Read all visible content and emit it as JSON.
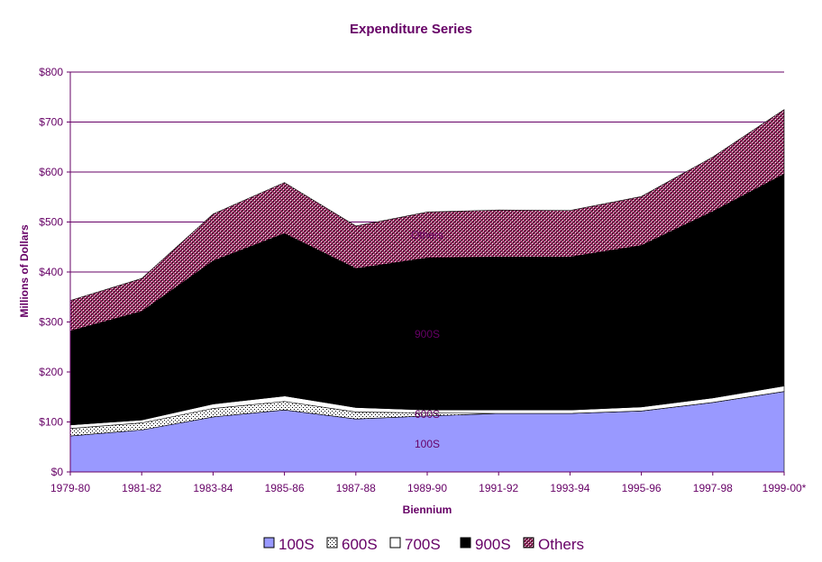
{
  "chart_data": {
    "type": "area",
    "stacked": true,
    "title": "Expenditure Series",
    "xlabel": "Biennium",
    "ylabel": "Millions of Dollars",
    "ylim": [
      0,
      800
    ],
    "y_ticks": [
      "$0",
      "$100",
      "$200",
      "$300",
      "$400",
      "$500",
      "$600",
      "$700",
      "$800"
    ],
    "y_tick_values": [
      0,
      100,
      200,
      300,
      400,
      500,
      600,
      700,
      800
    ],
    "categories": [
      "1979-80",
      "1981-82",
      "1983-84",
      "1985-86",
      "1987-88",
      "1989-90",
      "1991-92",
      "1993-94",
      "1995-96",
      "1997-98",
      "1999-00*"
    ],
    "grid": "horizontal",
    "legend_position": "bottom",
    "series": [
      {
        "name": "100S",
        "color": "#9999ff",
        "pattern": "solid",
        "values": [
          72,
          84,
          110,
          124,
          106,
          112,
          117,
          117,
          122,
          139,
          161
        ]
      },
      {
        "name": "600S",
        "color": "#ffffff",
        "pattern": "dots",
        "values": [
          15,
          14,
          17,
          17,
          14,
          6,
          0,
          0,
          0,
          0,
          0
        ]
      },
      {
        "name": "700S",
        "color": "#ffffff",
        "pattern": "solid",
        "values": [
          7,
          6,
          9,
          11,
          9,
          6,
          7,
          7,
          8,
          9,
          11
        ]
      },
      {
        "name": "900S",
        "color": "#000000",
        "pattern": "solid",
        "values": [
          188,
          217,
          286,
          325,
          278,
          304,
          306,
          306,
          323,
          373,
          424
        ]
      },
      {
        "name": "Others",
        "color": "#993366",
        "pattern": "crosshatch",
        "values": [
          61,
          66,
          94,
          102,
          85,
          92,
          94,
          93,
          98,
          109,
          129
        ]
      }
    ],
    "area_labels": [
      "100S",
      "600S",
      "900S",
      "Others"
    ]
  }
}
